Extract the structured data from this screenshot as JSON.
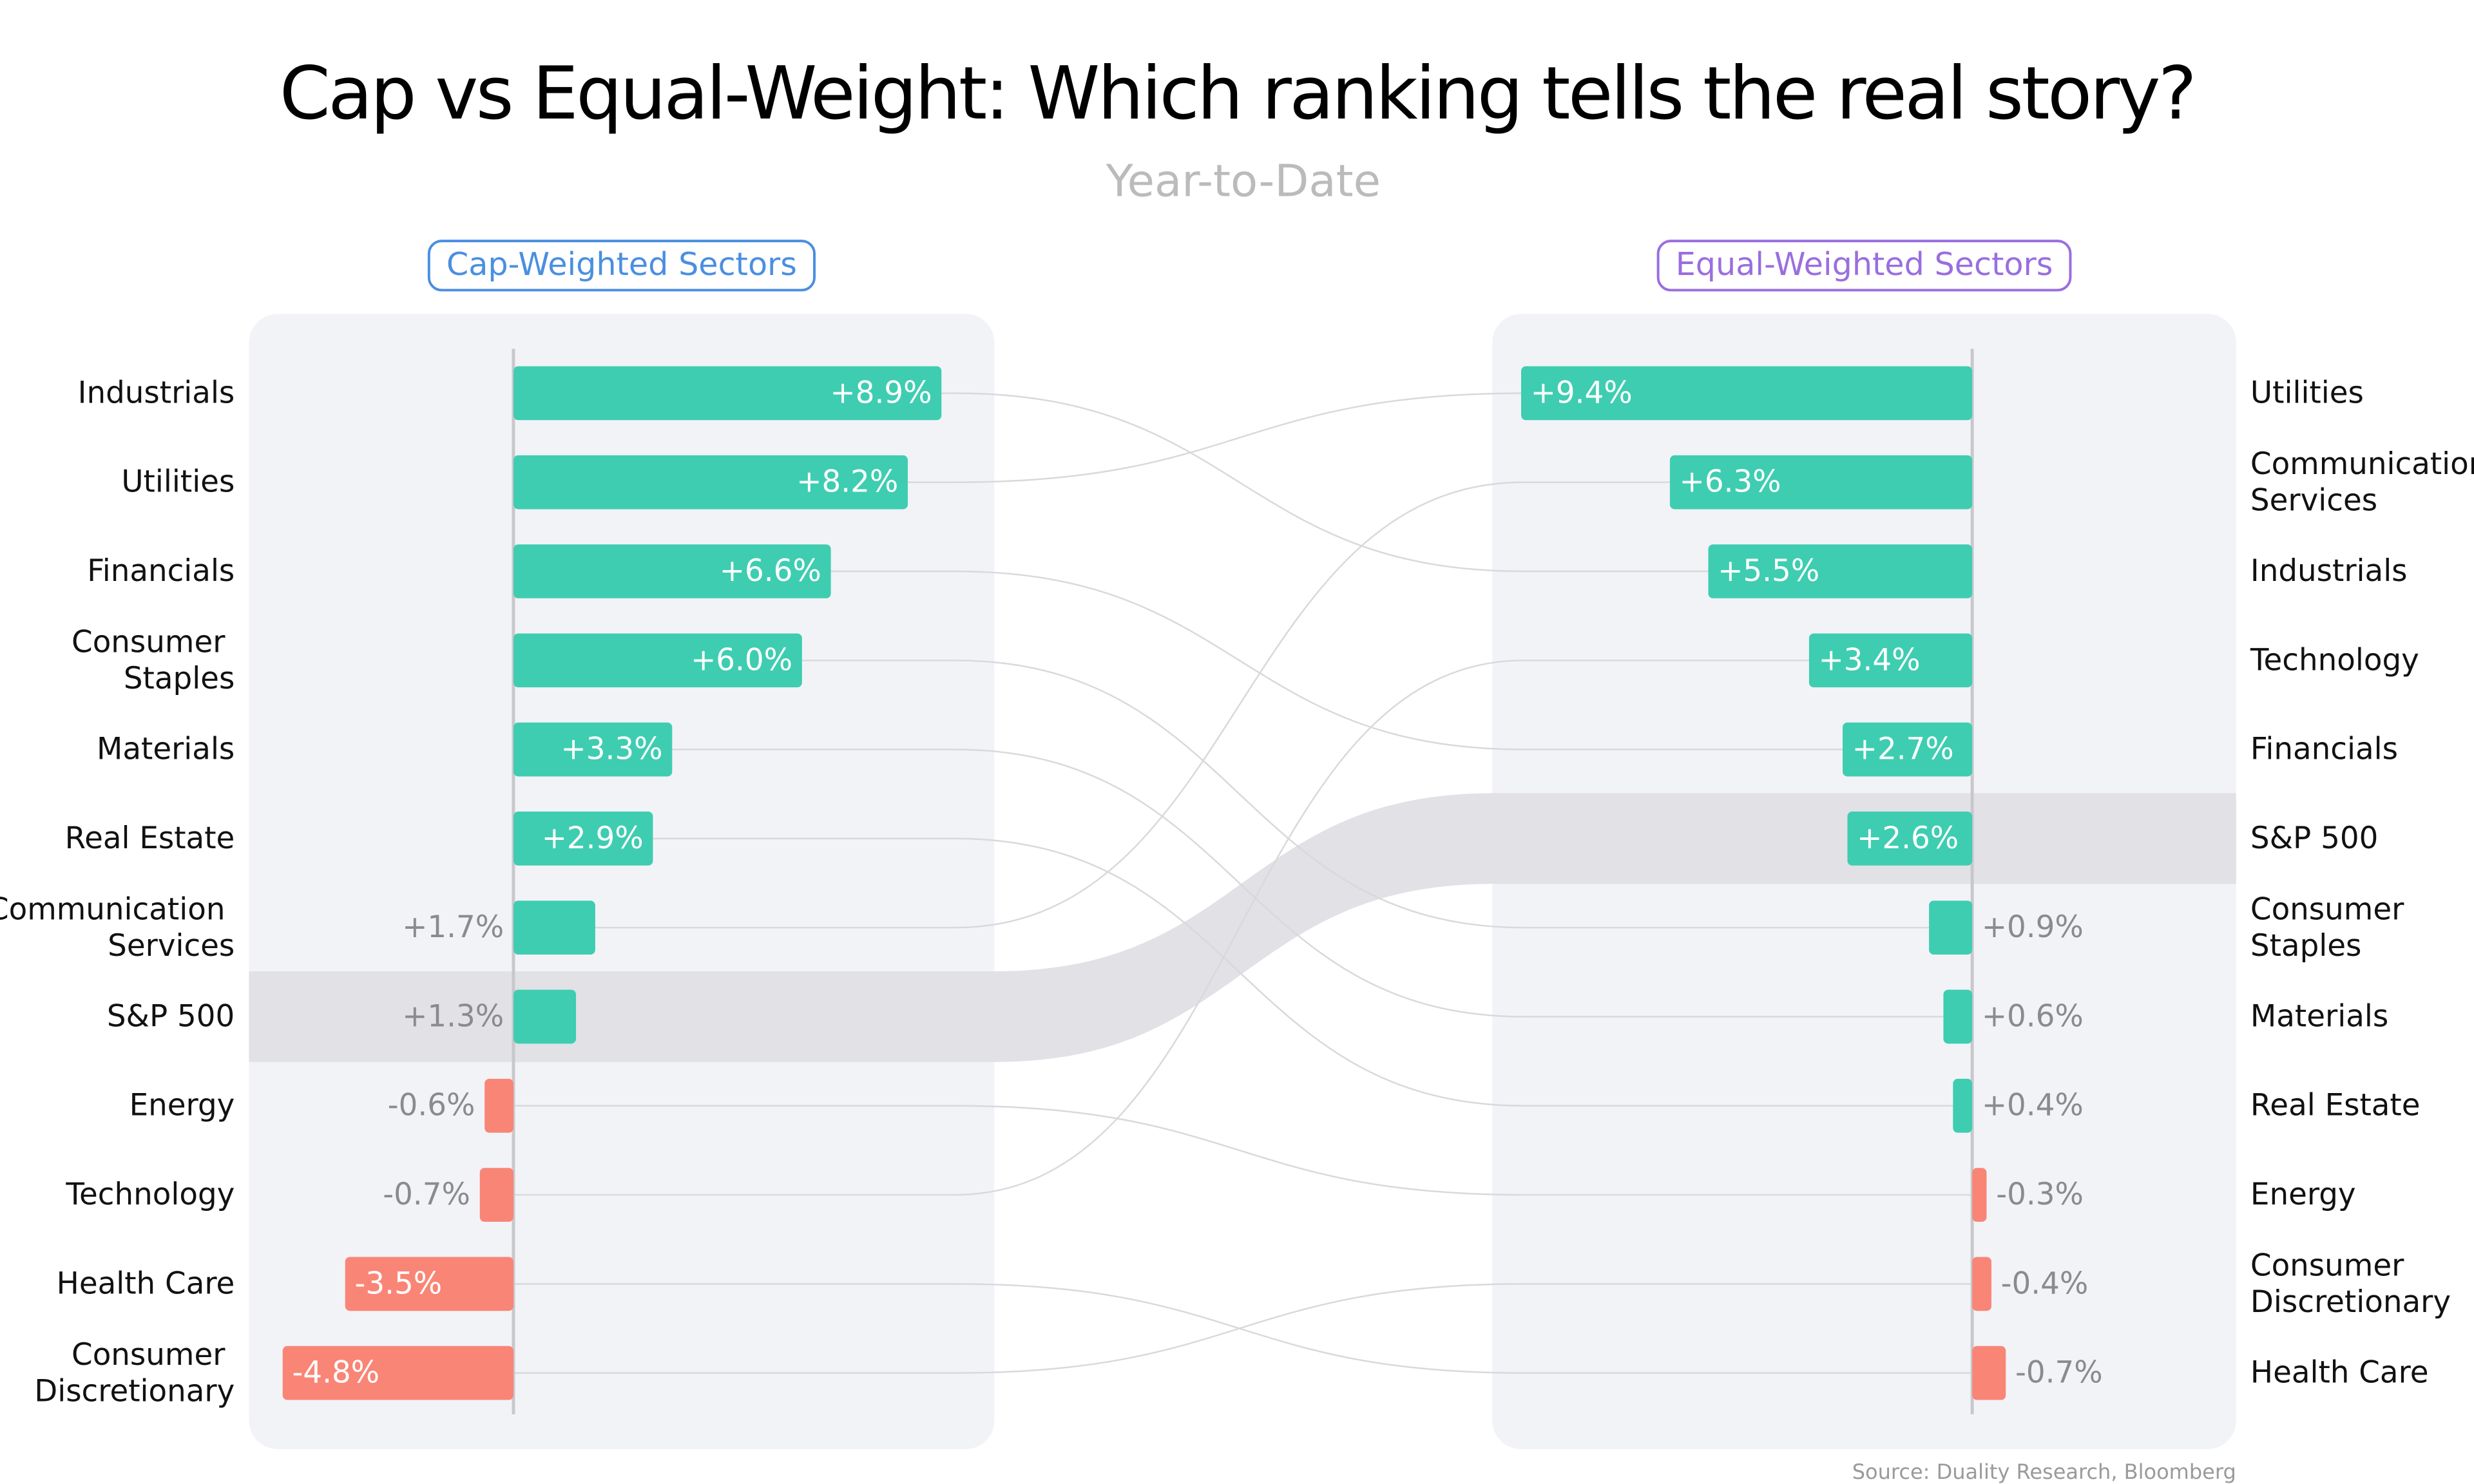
{
  "title": "Cap vs Equal-Weight: Which ranking tells the real story?",
  "subtitle": "Year-to-Date",
  "source": "Source: Duality Research, Bloomberg",
  "chart_data": [
    {
      "type": "bar",
      "orientation": "horizontal",
      "title": "Cap-Weighted Sectors",
      "title_color": "#4a8fe0",
      "categories": [
        "Industrials",
        "Utilities",
        "Financials",
        "Consumer Staples",
        "Materials",
        "Real Estate",
        "Communication Services",
        "S&P 500",
        "Energy",
        "Technology",
        "Health Care",
        "Consumer Discretionary"
      ],
      "values": [
        8.9,
        8.2,
        6.6,
        6.0,
        3.3,
        2.9,
        1.7,
        1.3,
        -0.6,
        -0.7,
        -3.5,
        -4.8
      ],
      "value_labels": [
        "+8.9%",
        "+8.2%",
        "+6.6%",
        "+6.0%",
        "+3.3%",
        "+2.9%",
        "+1.7%",
        "+1.3%",
        "-0.6%",
        "-0.7%",
        "-3.5%",
        "-4.8%"
      ],
      "xlim": [
        -5.5,
        10
      ],
      "colors": {
        "positive": "#3ecdb1",
        "negative": "#f98576"
      },
      "highlight": "S&P 500"
    },
    {
      "type": "bar",
      "orientation": "horizontal",
      "title": "Equal-Weighted Sectors",
      "title_color": "#9a6ee0",
      "categories": [
        "Utilities",
        "Communication Services",
        "Industrials",
        "Technology",
        "Financials",
        "S&P 500",
        "Consumer Staples",
        "Materials",
        "Real Estate",
        "Energy",
        "Consumer Discretionary",
        "Health Care"
      ],
      "values": [
        9.4,
        6.3,
        5.5,
        3.4,
        2.7,
        2.6,
        0.9,
        0.6,
        0.4,
        -0.3,
        -0.4,
        -0.7
      ],
      "value_labels": [
        "+9.4%",
        "+6.3%",
        "+5.5%",
        "+3.4%",
        "+2.7%",
        "+2.6%",
        "+0.9%",
        "+0.6%",
        "+0.4%",
        "-0.3%",
        "-0.4%",
        "-0.7%"
      ],
      "xlim": [
        10,
        -5.5
      ],
      "colors": {
        "positive": "#3ecdb1",
        "negative": "#f98576"
      },
      "highlight": "S&P 500"
    }
  ]
}
